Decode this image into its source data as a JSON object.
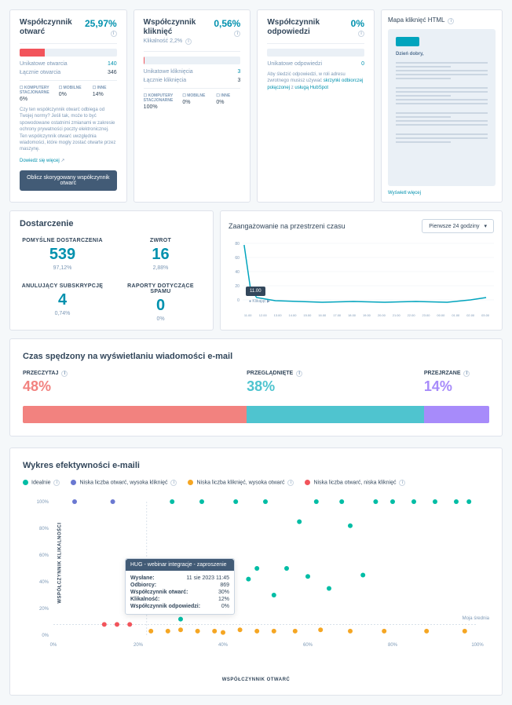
{
  "metrics": [
    {
      "title": "Współczynnik otwarć",
      "value": "25,97%",
      "bar_pct": 25.97,
      "bar_color": "#f2545b",
      "row1_k": "Unikatowe otwarcia",
      "row1_v": "140",
      "row2_k": "Łącznie otwarcia",
      "row2_v": "346",
      "devices": [
        {
          "n": "KOMPUTERY STACJONARNE",
          "v": "6%"
        },
        {
          "n": "MOBILNE",
          "v": "0%"
        },
        {
          "n": "INNE",
          "v": "14%"
        }
      ],
      "note": "Czy ten współczynnik otwarć odbiega od Twojej normy? Jeśli tak, może to być spowodowane ostatnimi zmianami w zakresie ochrony prywatności poczty elektronicznej. Ten współczynnik otwarć uwzględnia wiadomości, które mogły zostać otwarte przez maszynę.",
      "link": "Dowiedz się więcej",
      "button": "Oblicz skorygowany współczynnik otwarć"
    },
    {
      "title": "Współczynnik kliknięć",
      "value": "0,56%",
      "sub": "Klikalność 2,2%",
      "bar_pct": 0.56,
      "bar_color": "#f2545b",
      "row1_k": "Unikatowe kliknięcia",
      "row1_v": "3",
      "row2_k": "Łącznie kliknięcia",
      "row2_v": "3",
      "devices": [
        {
          "n": "KOMPUTERY STACJONARNE",
          "v": "100%"
        },
        {
          "n": "MOBILNE",
          "v": "0%"
        },
        {
          "n": "INNE",
          "v": "0%"
        }
      ]
    },
    {
      "title": "Współczynnik odpowiedzi",
      "value": "0%",
      "bar_pct": 0,
      "bar_color": "#f2545b",
      "row1_k": "Unikatowe odpowiedzi",
      "row1_v": "0",
      "note2": "Aby śledzić odpowiedzi, w roli adresu zwrotnego musisz używać ",
      "link2a": "skrzynki odbiorczej połączonej",
      "note2b": " z ",
      "link2b": "usługą HubSpot"
    }
  ],
  "heatmap_title": "Mapa kliknięć HTML",
  "heatmap_hello": "Dzień dobry,",
  "heatmap_link": "Wyświetl więcej",
  "delivery": {
    "title": "Dostarczenie",
    "items": [
      {
        "label": "POMYŚLNE DOSTARCZENIA",
        "num": "539",
        "pct": "97,12%"
      },
      {
        "label": "ZWROT",
        "num": "16",
        "pct": "2,88%"
      },
      {
        "label": "ANULUJĄCY SUBSKRYPCJĘ",
        "num": "4",
        "pct": "0,74%"
      },
      {
        "label": "RAPORTY DOTYCZĄCE SPAMU",
        "num": "0",
        "pct": "0%"
      }
    ]
  },
  "engagement": {
    "title": "Zaangażowanie na przestrzeni czasu",
    "select": "Pierwsze 24 godziny",
    "legend": "Klikając",
    "yticks": [
      "80",
      "60",
      "40",
      "20",
      "0"
    ],
    "xticks": [
      "11.00",
      "12.00",
      "13.00",
      "14.00",
      "15.00",
      "16.00",
      "17.00",
      "18.00",
      "19.00",
      "20.00",
      "21.00",
      "22.00",
      "23.00",
      "00.00",
      "01.00",
      "02.00",
      "03.00"
    ],
    "bot_label": "11.00"
  },
  "timespent": {
    "title": "Czas spędzony na wyświetlaniu wiadomości e-mail",
    "segs": [
      {
        "label": "PRZECZYTAJ",
        "pct": "48%",
        "w": 48,
        "color": "#f2827f"
      },
      {
        "label": "PRZEGLĄDNIĘTE",
        "pct": "38%",
        "w": 38,
        "color": "#4fc4cf"
      },
      {
        "label": "PRZEJRZANE",
        "pct": "14%",
        "w": 14,
        "color": "#a78bfa"
      }
    ]
  },
  "scatter": {
    "title": "Wykres efektywności e-maili",
    "legend": [
      {
        "c": "#00bda5",
        "t": "Idealnie"
      },
      {
        "c": "#6a78d1",
        "t": "Niska liczba otwarć, wysoka kliknięć"
      },
      {
        "c": "#f5a623",
        "t": "Niska liczba kliknięć, wysoka otwarć"
      },
      {
        "c": "#f2545b",
        "t": "Niska liczba otwarć, niska kliknięć"
      }
    ],
    "ylabel": "WSPÓŁCZYNNIK KLIKALNOŚCI",
    "xlabel": "WSPÓŁCZYNNIK OTWARĆ",
    "xticks": [
      "0%",
      "20%",
      "40%",
      "60%",
      "80%",
      "100%"
    ],
    "yticks": [
      "0%",
      "20%",
      "40%",
      "60%",
      "80%",
      "100%"
    ],
    "moja": "Moja średnia",
    "avg_x": 22,
    "avg_y": 8,
    "tooltip": {
      "title": "HUG - webinar integracje - zaproszenie",
      "rows": [
        {
          "k": "Wysłane:",
          "v": "11 sie 2023 11:45"
        },
        {
          "k": "Odbiorcy:",
          "v": "869"
        },
        {
          "k": "Współczynnik otwarć:",
          "v": "30%"
        },
        {
          "k": "Klikalność:",
          "v": "12%"
        },
        {
          "k": "Współczynnik odpowiedzi:",
          "v": "0%"
        }
      ]
    },
    "points": [
      {
        "x": 12,
        "y": 8,
        "c": "#f2545b"
      },
      {
        "x": 15,
        "y": 8,
        "c": "#f2545b"
      },
      {
        "x": 18,
        "y": 8,
        "c": "#f2545b"
      },
      {
        "x": 5,
        "y": 100,
        "c": "#6a78d1"
      },
      {
        "x": 14,
        "y": 100,
        "c": "#6a78d1"
      },
      {
        "x": 23,
        "y": 3,
        "c": "#f5a623"
      },
      {
        "x": 27,
        "y": 3,
        "c": "#f5a623"
      },
      {
        "x": 30,
        "y": 4,
        "c": "#f5a623"
      },
      {
        "x": 34,
        "y": 3,
        "c": "#f5a623"
      },
      {
        "x": 38,
        "y": 3,
        "c": "#f5a623"
      },
      {
        "x": 40,
        "y": 2,
        "c": "#f5a623"
      },
      {
        "x": 44,
        "y": 4,
        "c": "#f5a623"
      },
      {
        "x": 48,
        "y": 3,
        "c": "#f5a623"
      },
      {
        "x": 52,
        "y": 3,
        "c": "#f5a623"
      },
      {
        "x": 57,
        "y": 3,
        "c": "#f5a623"
      },
      {
        "x": 63,
        "y": 4,
        "c": "#f5a623"
      },
      {
        "x": 70,
        "y": 3,
        "c": "#f5a623"
      },
      {
        "x": 78,
        "y": 3,
        "c": "#f5a623"
      },
      {
        "x": 88,
        "y": 3,
        "c": "#f5a623"
      },
      {
        "x": 97,
        "y": 3,
        "c": "#f5a623"
      },
      {
        "x": 25,
        "y": 40,
        "c": "#00bda5"
      },
      {
        "x": 28,
        "y": 100,
        "c": "#00bda5"
      },
      {
        "x": 30,
        "y": 12,
        "c": "#00bda5"
      },
      {
        "x": 32,
        "y": 45,
        "c": "#00bda5"
      },
      {
        "x": 35,
        "y": 100,
        "c": "#00bda5"
      },
      {
        "x": 38,
        "y": 52,
        "c": "#00bda5"
      },
      {
        "x": 40,
        "y": 46,
        "c": "#00bda5"
      },
      {
        "x": 43,
        "y": 100,
        "c": "#00bda5"
      },
      {
        "x": 46,
        "y": 42,
        "c": "#00bda5"
      },
      {
        "x": 48,
        "y": 50,
        "c": "#00bda5"
      },
      {
        "x": 50,
        "y": 100,
        "c": "#00bda5"
      },
      {
        "x": 52,
        "y": 30,
        "c": "#00bda5"
      },
      {
        "x": 55,
        "y": 50,
        "c": "#00bda5"
      },
      {
        "x": 58,
        "y": 85,
        "c": "#00bda5"
      },
      {
        "x": 60,
        "y": 44,
        "c": "#00bda5"
      },
      {
        "x": 62,
        "y": 100,
        "c": "#00bda5"
      },
      {
        "x": 65,
        "y": 35,
        "c": "#00bda5"
      },
      {
        "x": 68,
        "y": 100,
        "c": "#00bda5"
      },
      {
        "x": 70,
        "y": 82,
        "c": "#00bda5"
      },
      {
        "x": 73,
        "y": 45,
        "c": "#00bda5"
      },
      {
        "x": 76,
        "y": 100,
        "c": "#00bda5"
      },
      {
        "x": 80,
        "y": 100,
        "c": "#00bda5"
      },
      {
        "x": 85,
        "y": 100,
        "c": "#00bda5"
      },
      {
        "x": 90,
        "y": 100,
        "c": "#00bda5"
      },
      {
        "x": 95,
        "y": 100,
        "c": "#00bda5"
      },
      {
        "x": 98,
        "y": 100,
        "c": "#00bda5"
      }
    ]
  }
}
